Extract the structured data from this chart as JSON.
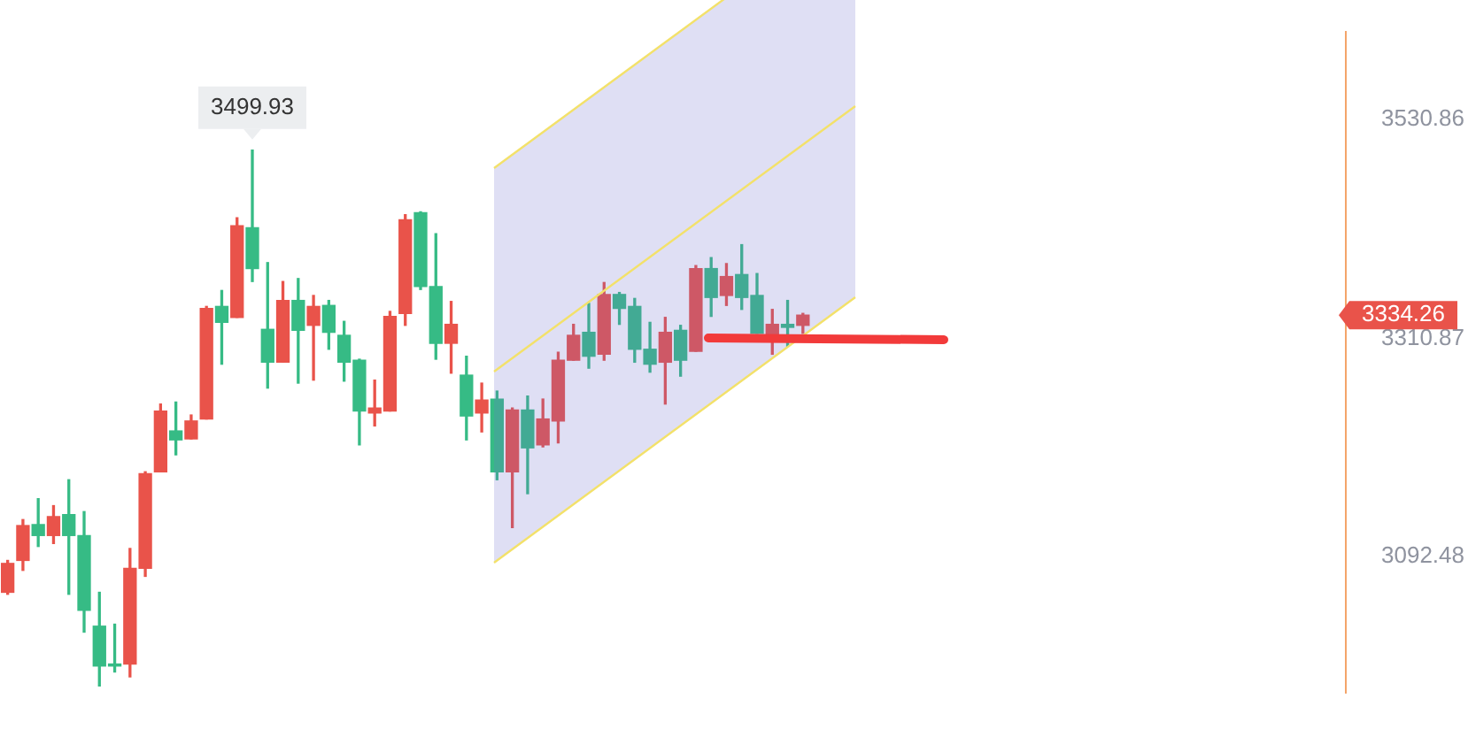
{
  "chart_data": {
    "type": "candlestick",
    "categories": [
      null,
      null,
      null,
      null,
      null,
      null,
      null,
      null,
      null,
      null,
      null,
      null,
      null,
      null,
      null,
      null,
      null,
      null,
      null,
      null,
      null,
      null,
      null,
      null,
      null,
      null,
      null,
      null,
      null,
      null,
      null,
      null,
      null,
      null,
      null,
      null,
      null,
      null,
      null,
      null,
      null,
      null,
      null,
      null,
      null,
      null,
      null,
      null,
      null,
      null,
      null,
      null,
      null,
      null,
      null,
      null,
      null,
      null,
      null,
      null,
      null,
      null,
      null,
      null,
      null,
      null,
      null,
      null,
      null,
      null,
      null,
      null,
      null,
      null,
      null,
      null,
      null,
      null,
      null,
      null,
      null,
      null,
      null,
      null,
      null,
      null,
      null,
      null
    ],
    "ohlc": [
      [
        3056,
        3088,
        3054,
        3085
      ],
      [
        3088,
        3129,
        3078,
        3123
      ],
      [
        3124,
        3150,
        3102,
        3113
      ],
      [
        3113,
        3143,
        3105,
        3132
      ],
      [
        3134,
        3169,
        3054,
        3113
      ],
      [
        3113,
        3137,
        3016,
        3038
      ],
      [
        3022,
        3056,
        2962,
        2982
      ],
      [
        2984,
        3024,
        2976,
        2982
      ],
      [
        2984,
        3100,
        2971,
        3080
      ],
      [
        3080,
        3177,
        3072,
        3175
      ],
      [
        3177,
        3245,
        3177,
        3238
      ],
      [
        3218,
        3247,
        3194,
        3209
      ],
      [
        3210,
        3234,
        3210,
        3228
      ],
      [
        3230,
        3343,
        3230,
        3341
      ],
      [
        3343,
        3359,
        3285,
        3327
      ],
      [
        3332,
        3432,
        3332,
        3424
      ],
      [
        3422,
        3499.93,
        3368,
        3381
      ],
      [
        3320,
        3387,
        3261,
        3287
      ],
      [
        3287,
        3368,
        3287,
        3349
      ],
      [
        3349,
        3371,
        3266,
        3319
      ],
      [
        3324,
        3354,
        3269,
        3343
      ],
      [
        3344,
        3349,
        3300,
        3317
      ],
      [
        3314,
        3328,
        3268,
        3287
      ],
      [
        3289,
        3290,
        3204,
        3238
      ],
      [
        3236,
        3269,
        3223,
        3241
      ],
      [
        3238,
        3338,
        3238,
        3333
      ],
      [
        3336,
        3435,
        3324,
        3430
      ],
      [
        3437,
        3438,
        3360,
        3363
      ],
      [
        3363,
        3416,
        3290,
        3306
      ],
      [
        3306,
        3348,
        3276,
        3325
      ],
      [
        3274,
        3293,
        3209,
        3233
      ],
      [
        3236,
        3266,
        3217,
        3249
      ],
      [
        3250,
        3258,
        3169,
        3177
      ],
      [
        3177,
        3241,
        3121,
        3239
      ],
      [
        3239,
        3253,
        3155,
        3201
      ],
      [
        3204,
        3250,
        3202,
        3230
      ],
      [
        3228,
        3297,
        3206,
        3289
      ],
      [
        3289,
        3325,
        3289,
        3314
      ],
      [
        3317,
        3346,
        3281,
        3293
      ],
      [
        3295,
        3367,
        3289,
        3355
      ],
      [
        3355,
        3357,
        3325,
        3341
      ],
      [
        3343,
        3351,
        3287,
        3300
      ],
      [
        3300,
        3327,
        3277,
        3285
      ],
      [
        3287,
        3332,
        3245,
        3317
      ],
      [
        3319,
        3324,
        3273,
        3289
      ],
      [
        3298,
        3384,
        3298,
        3381
      ],
      [
        3381,
        3392,
        3333,
        3352
      ],
      [
        3354,
        3386,
        3344,
        3373
      ],
      [
        3375,
        3405,
        3340,
        3352
      ],
      [
        3354,
        3376,
        3316,
        3316
      ],
      [
        3311,
        3340,
        3295,
        3325
      ],
      [
        3325,
        3349,
        3303,
        3322
      ],
      [
        3324,
        3336,
        3316,
        3334.26
      ],
      null,
      null,
      null,
      null,
      null,
      null,
      null,
      null,
      null,
      null,
      null,
      null,
      null,
      null,
      null,
      null,
      null,
      null,
      null,
      null,
      null,
      null,
      null,
      null,
      null,
      null,
      null,
      null,
      null,
      null,
      null,
      null,
      null,
      null,
      null
    ],
    "colors": [
      "#e9534a",
      "#e9534a",
      "#36bb85",
      "#e9534a",
      "#36bb85",
      "#36bb85",
      "#36bb85",
      "#36bb85",
      "#e9534a",
      "#e9534a",
      "#e9534a",
      "#36bb85",
      "#e9534a",
      "#e9534a",
      "#36bb85",
      "#e9534a",
      "#36bb85",
      "#36bb85",
      "#e9534a",
      "#36bb85",
      "#e9534a",
      "#36bb85",
      "#36bb85",
      "#36bb85",
      "#e9534a",
      "#e9534a",
      "#e9534a",
      "#36bb85",
      "#36bb85",
      "#e9534a",
      "#36bb85",
      "#e9534a",
      "#36bb85",
      "#e9534a",
      "#36bb85",
      "#e9534a",
      "#e9534a",
      "#e9534a",
      "#36bb85",
      "#e9534a",
      "#36bb85",
      "#36bb85",
      "#36bb85",
      "#e9534a",
      "#36bb85",
      "#e9534a",
      "#36bb85",
      "#e9534a",
      "#36bb85",
      "#36bb85",
      "#e9534a",
      "#36bb85",
      "#e9534a",
      null,
      null,
      null,
      null,
      null,
      null,
      null,
      null,
      null,
      null,
      null,
      null,
      null,
      null,
      null,
      null,
      null,
      null,
      null,
      null,
      null,
      null,
      null,
      null,
      null,
      null,
      null,
      null,
      null,
      null,
      null,
      null,
      null,
      null,
      null
    ],
    "ylim": [
      2955,
      3619
    ],
    "yticks": [
      3530.86,
      3310.87,
      3092.48
    ],
    "annotations": [
      {
        "text": "3499.93",
        "y": 3499.93
      },
      "3334.26"
    ]
  }
}
